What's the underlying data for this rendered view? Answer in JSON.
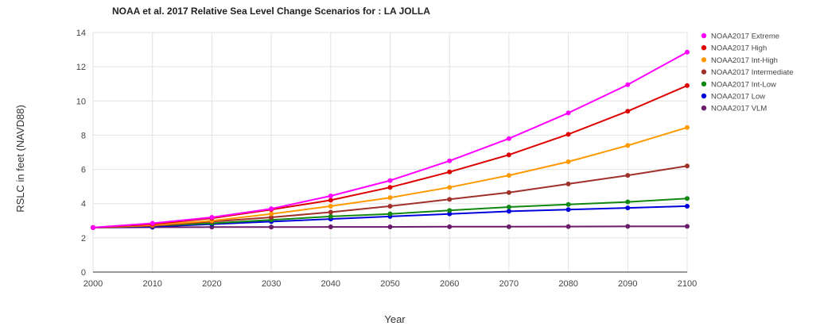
{
  "chart_data": {
    "type": "line",
    "title": "NOAA et al. 2017 Relative Sea Level Change Scenarios for : LA JOLLA",
    "xlabel": "Year",
    "ylabel": "RSLC in feet (NAVD88)",
    "xlim": [
      2000,
      2100
    ],
    "ylim": [
      0,
      14
    ],
    "x_ticks": [
      2000,
      2010,
      2020,
      2030,
      2040,
      2050,
      2060,
      2070,
      2080,
      2090,
      2100
    ],
    "y_ticks": [
      0,
      2,
      4,
      6,
      8,
      10,
      12,
      14
    ],
    "grid": true,
    "legend_position": "right",
    "x": [
      2000,
      2010,
      2020,
      2030,
      2040,
      2050,
      2060,
      2070,
      2080,
      2090,
      2100
    ],
    "series": [
      {
        "name": "NOAA2017 Extreme",
        "color": "#ff00ff",
        "values": [
          2.6,
          2.85,
          3.2,
          3.7,
          4.45,
          5.35,
          6.5,
          7.8,
          9.3,
          10.95,
          12.85
        ]
      },
      {
        "name": "NOAA2017 High",
        "color": "#dd0000",
        "values": [
          2.6,
          2.8,
          3.15,
          3.65,
          4.2,
          4.95,
          5.85,
          6.85,
          8.05,
          9.4,
          10.9
        ]
      },
      {
        "name": "NOAA2017 Int-High",
        "color": "#ff9900",
        "values": [
          2.6,
          2.75,
          3.0,
          3.4,
          3.85,
          4.35,
          4.95,
          5.65,
          6.45,
          7.4,
          8.45
        ]
      },
      {
        "name": "NOAA2017 Intermediate",
        "color": "#a0302a",
        "values": [
          2.6,
          2.7,
          2.95,
          3.2,
          3.5,
          3.85,
          4.25,
          4.65,
          5.15,
          5.65,
          6.2
        ]
      },
      {
        "name": "NOAA2017 Int-Low",
        "color": "#118811",
        "values": [
          2.6,
          2.7,
          2.85,
          3.05,
          3.25,
          3.4,
          3.6,
          3.8,
          3.95,
          4.1,
          4.3
        ]
      },
      {
        "name": "NOAA2017 Low",
        "color": "#0000dd",
        "values": [
          2.6,
          2.65,
          2.8,
          2.95,
          3.1,
          3.25,
          3.4,
          3.55,
          3.65,
          3.75,
          3.85
        ]
      },
      {
        "name": "NOAA2017 VLM",
        "color": "#6a1b6a",
        "values": [
          2.6,
          2.62,
          2.63,
          2.63,
          2.64,
          2.64,
          2.65,
          2.65,
          2.66,
          2.67,
          2.67
        ]
      }
    ]
  }
}
